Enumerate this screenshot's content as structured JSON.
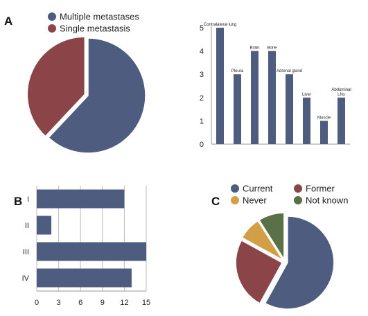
{
  "panel_labels": [
    "A",
    "B",
    "C"
  ],
  "colors": {
    "blue": "#4d5c7f",
    "red": "#8b4549",
    "gold": "#d39f46",
    "green": "#5a7046"
  },
  "chart_data": [
    {
      "type": "pie",
      "panel": "A",
      "labels": [
        "Multiple metastases",
        "Single metastasis"
      ],
      "values": [
        62,
        38
      ],
      "colors": [
        "#4d5c7f",
        "#8b4549"
      ],
      "exploded": "Single metastasis",
      "legend": "top-left"
    },
    {
      "type": "bar",
      "panel": "A",
      "categories": [
        "Contralateral lung",
        "Pleura",
        "Brain",
        "Bone",
        "Adrenal gland",
        "Liver",
        "Muscle",
        "Abdominal LNs"
      ],
      "values": [
        5,
        3,
        4,
        4,
        3,
        2,
        1,
        2
      ],
      "ylim": [
        0,
        5
      ],
      "yticks": [
        0,
        1,
        2,
        3,
        4,
        5
      ],
      "grid": false,
      "color": "#4d5c7f"
    },
    {
      "type": "bar",
      "orientation": "horizontal",
      "panel": "B",
      "categories": [
        "I",
        "II",
        "III",
        "IV"
      ],
      "values": [
        12,
        2,
        15,
        13
      ],
      "xlim": [
        0,
        15
      ],
      "xticks": [
        0,
        3,
        6,
        9,
        12,
        15
      ],
      "grid": true,
      "color": "#4d5c7f"
    },
    {
      "type": "pie",
      "panel": "C",
      "labels": [
        "Current",
        "Former",
        "Never",
        "Not known"
      ],
      "values": [
        58,
        25,
        8,
        9
      ],
      "colors": [
        "#4d5c7f",
        "#8b4549",
        "#d39f46",
        "#5a7046"
      ],
      "exploded": "all",
      "legend": "top"
    }
  ]
}
